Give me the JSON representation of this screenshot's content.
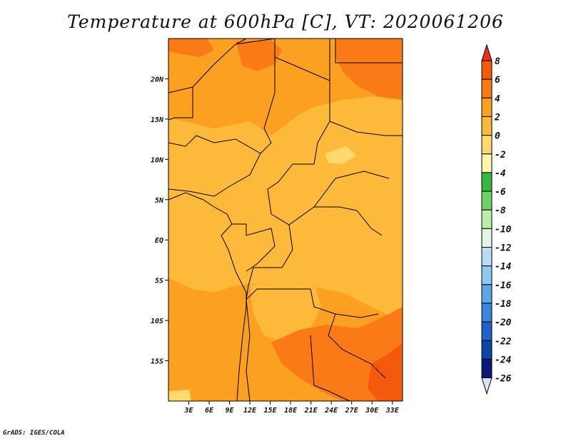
{
  "title": "Temperature at 600hPa [C], VT: 2020061206",
  "credit": "GrADS: IGES/COLA",
  "map": {
    "lon_range": [
      0,
      34.5
    ],
    "lat_range": [
      -20,
      25
    ],
    "y_ticks": [
      {
        "lat": 20,
        "label": "20N"
      },
      {
        "lat": 15,
        "label": "15N"
      },
      {
        "lat": 10,
        "label": "10N"
      },
      {
        "lat": 5,
        "label": "5N"
      },
      {
        "lat": 0,
        "label": "EQ"
      },
      {
        "lat": -5,
        "label": "5S"
      },
      {
        "lat": -10,
        "label": "10S"
      },
      {
        "lat": -15,
        "label": "15S"
      }
    ],
    "x_ticks": [
      {
        "lon": 3,
        "label": "3E"
      },
      {
        "lon": 6,
        "label": "6E"
      },
      {
        "lon": 9,
        "label": "9E"
      },
      {
        "lon": 12,
        "label": "12E"
      },
      {
        "lon": 15,
        "label": "15E"
      },
      {
        "lon": 18,
        "label": "18E"
      },
      {
        "lon": 21,
        "label": "21E"
      },
      {
        "lon": 24,
        "label": "24E"
      },
      {
        "lon": 27,
        "label": "27E"
      },
      {
        "lon": 30,
        "label": "30E"
      },
      {
        "lon": 33,
        "label": "33E"
      }
    ]
  },
  "colorbar": {
    "levels": [
      "8",
      "6",
      "4",
      "2",
      "0",
      "-2",
      "-4",
      "-6",
      "-8",
      "-10",
      "-12",
      "-14",
      "-16",
      "-18",
      "-20",
      "-22",
      "-24",
      "-26"
    ],
    "colors": [
      "#e8341c",
      "#f55a0c",
      "#fa7a17",
      "#fca021",
      "#fdb93a",
      "#ffd86e",
      "#fff5aa",
      "#35b93e",
      "#6ed368",
      "#b8f0a8",
      "#e2f5e2",
      "#b8dcf5",
      "#8fc8f0",
      "#5aa6e8",
      "#3a86d8",
      "#1e64c8",
      "#0d44a8",
      "#0a1a7a",
      "#e0e0f8"
    ]
  },
  "field_colors": {
    "c2_4": "#fca021",
    "c0_2": "#fdb93a",
    "c4_6": "#fa7a17",
    "c6_8": "#f55a0c",
    "cm2_0": "#ffd86e"
  }
}
